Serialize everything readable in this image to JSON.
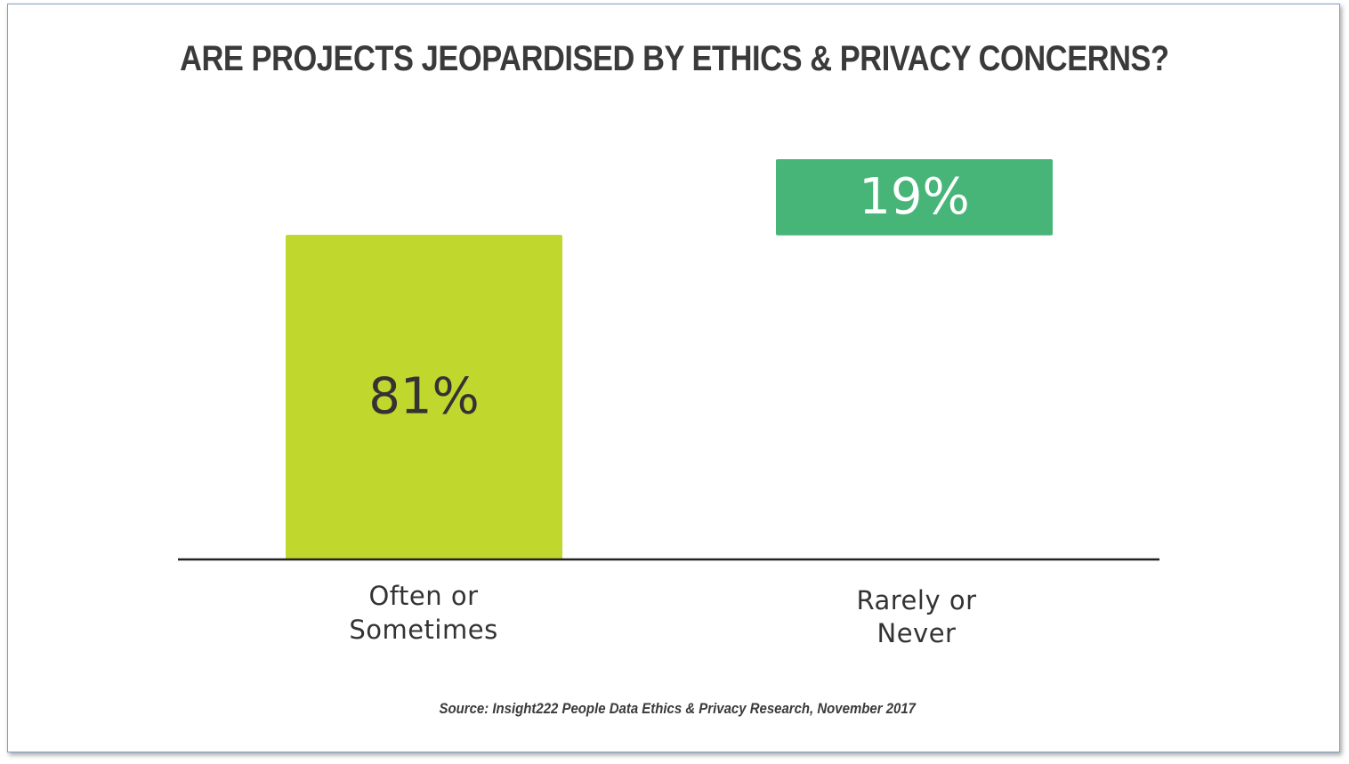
{
  "title": "ARE PROJECTS JEOPARDISED BY ETHICS & PRIVACY CONCERNS?",
  "source": "Source: Insight222 People Data Ethics & Privacy Research, November 2017",
  "colors": {
    "bar1": "#c0d72e",
    "bar2": "#47b578",
    "label_dark": "#333333",
    "label_light": "#ffffff",
    "axis": "#222222"
  },
  "chart_data": {
    "type": "bar",
    "categories": [
      "Often or Sometimes",
      "Rarely or Never"
    ],
    "category_lines": [
      [
        "Often or",
        "Sometimes"
      ],
      [
        "Rarely or",
        "Never"
      ]
    ],
    "values": [
      81,
      19
    ],
    "data_labels": [
      "81%",
      "19%"
    ],
    "title": "ARE PROJECTS JEOPARDISED BY ETHICS & PRIVACY CONCERNS?",
    "xlabel": "",
    "ylabel": "",
    "ylim": [
      0,
      100
    ],
    "grid": false,
    "legend": "none"
  }
}
